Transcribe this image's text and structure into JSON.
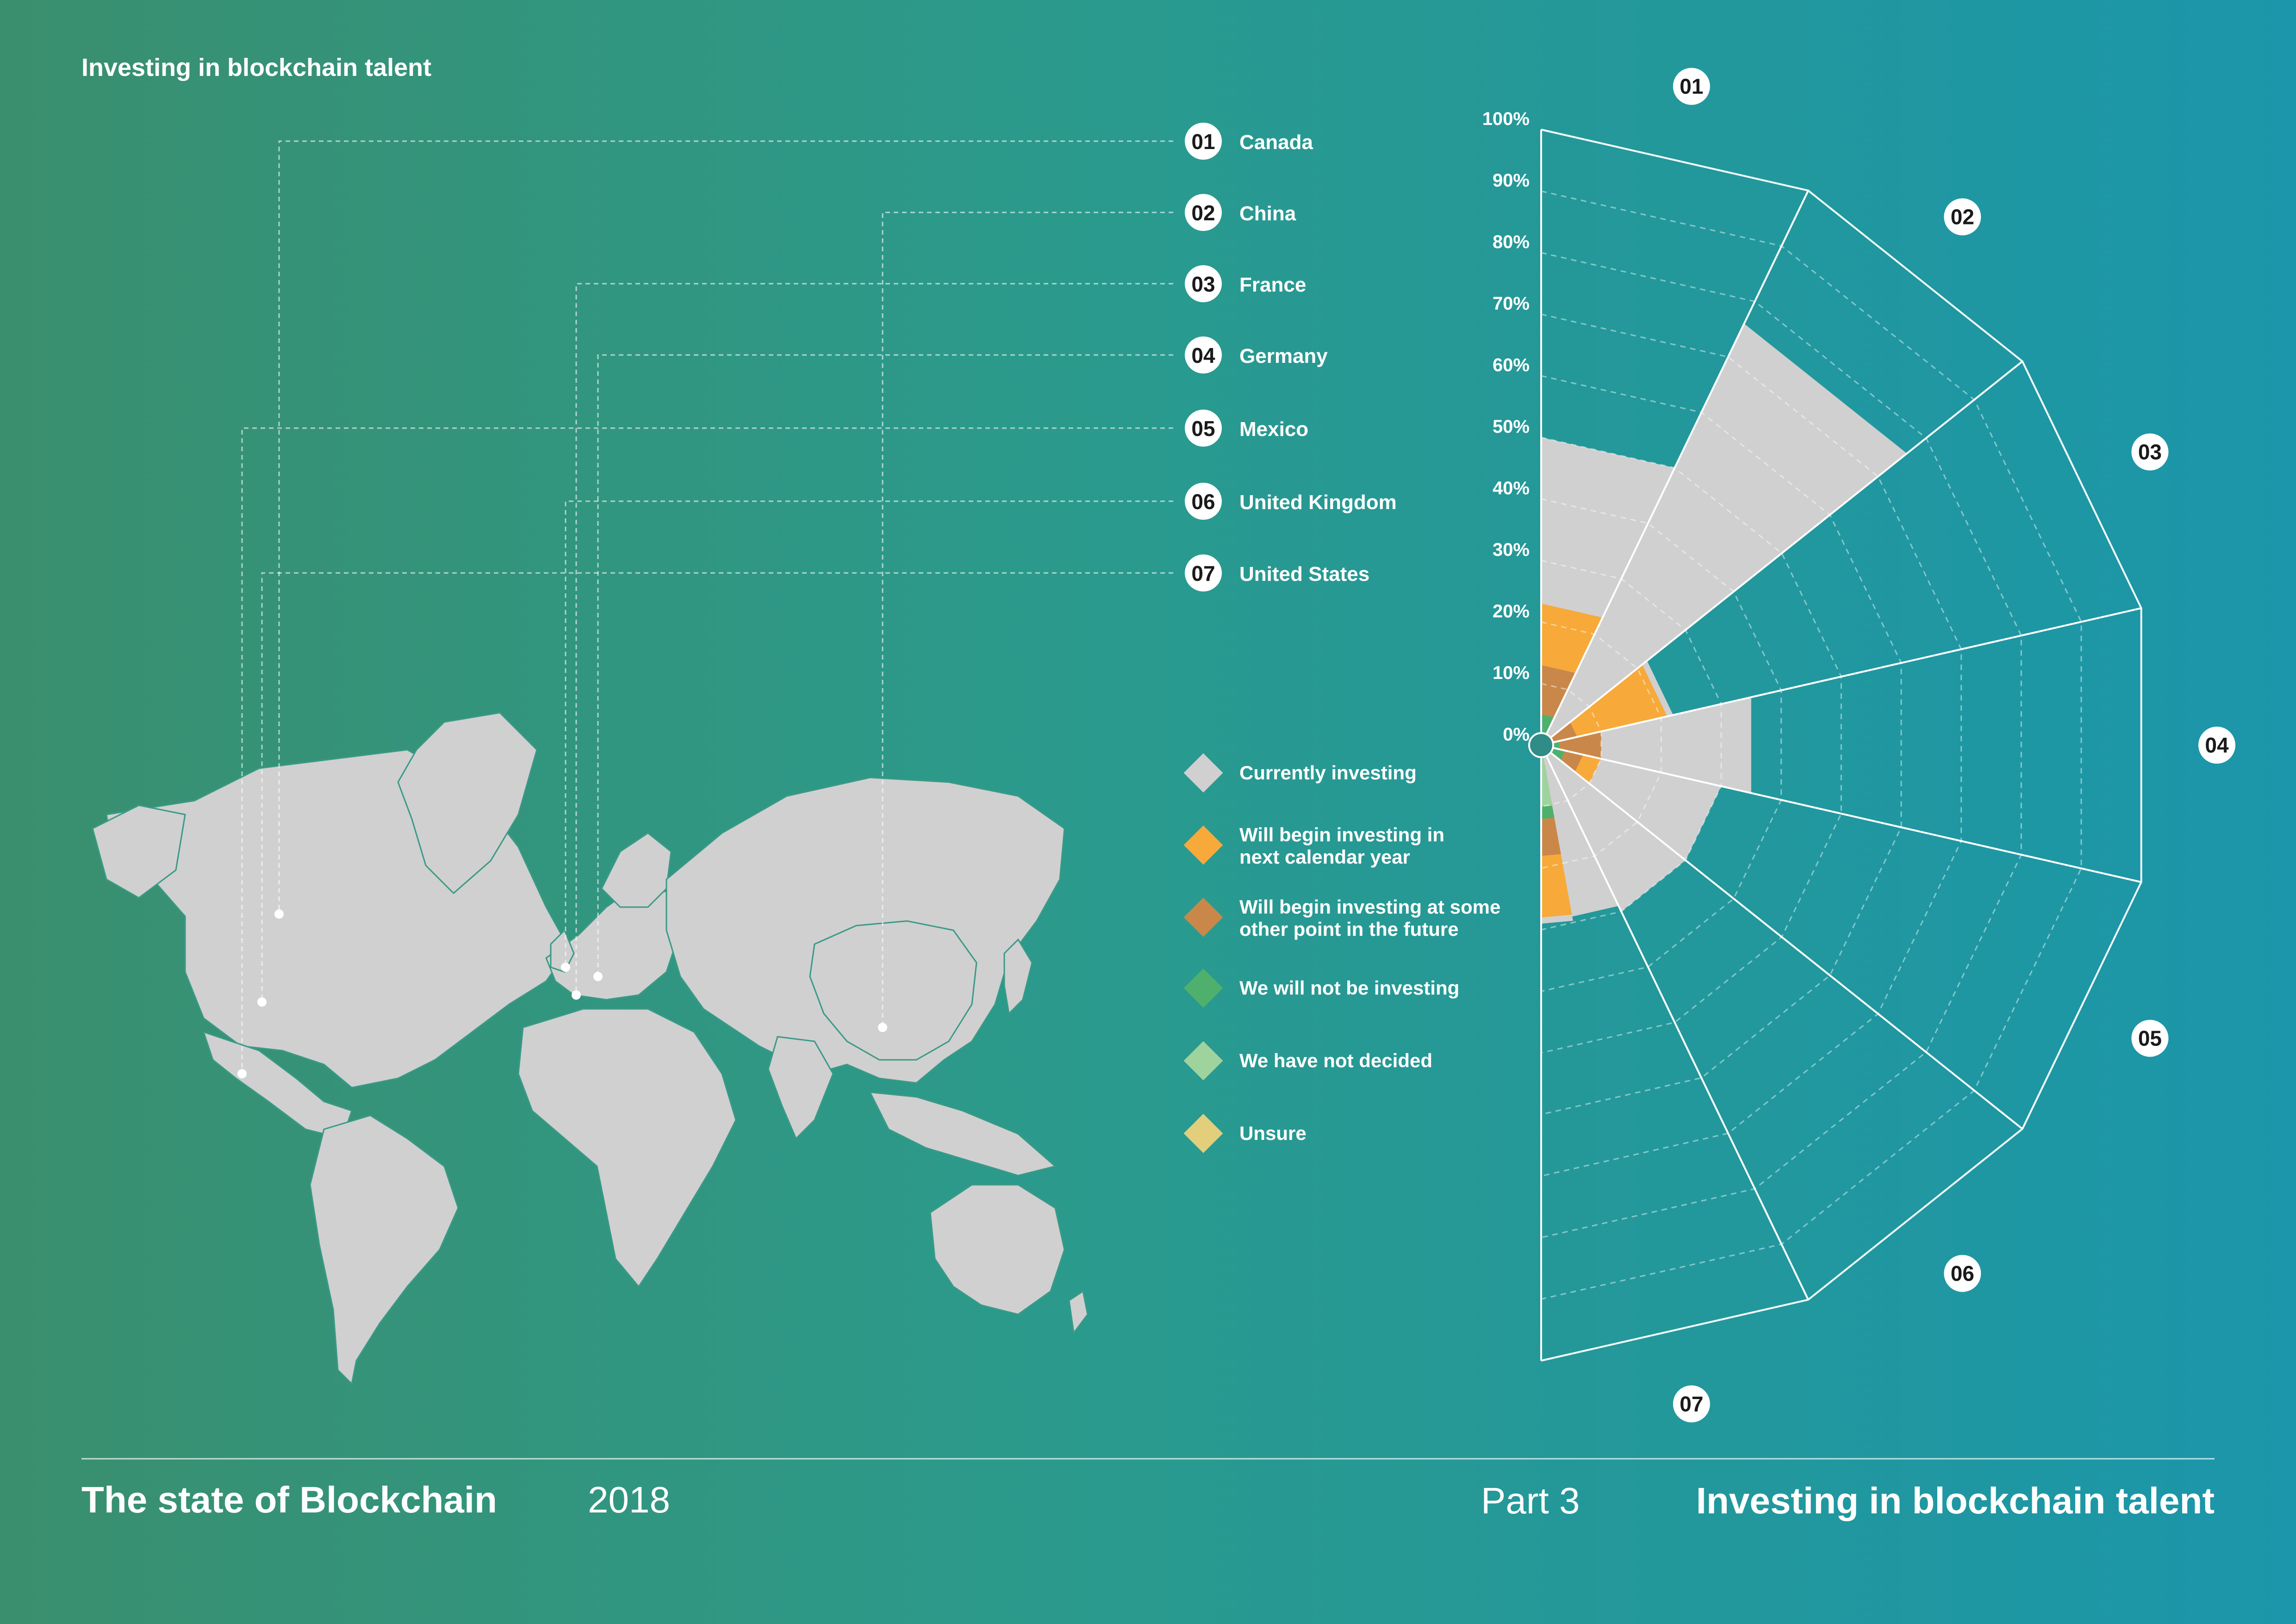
{
  "page": {
    "header_title": "Investing in blockchain talent",
    "footer_left_bold": "The state of Blockchain",
    "footer_left_year": "2018",
    "footer_right_part": "Part 3",
    "footer_right_title": "Investing in blockchain talent"
  },
  "countries": [
    {
      "num": "01",
      "name": "Canada"
    },
    {
      "num": "02",
      "name": "China"
    },
    {
      "num": "03",
      "name": "France"
    },
    {
      "num": "04",
      "name": "Germany"
    },
    {
      "num": "05",
      "name": "Mexico"
    },
    {
      "num": "06",
      "name": "United Kingdom"
    },
    {
      "num": "07",
      "name": "United States"
    }
  ],
  "legend": [
    {
      "label": "Currently investing",
      "color": "#d0d0d0"
    },
    {
      "label": "Will begin investing in next calendar year",
      "color": "#f7a93a"
    },
    {
      "label": "Will begin investing at some other point in the future",
      "color": "#c9884a"
    },
    {
      "label": "We will not be investing",
      "color": "#4fb06e"
    },
    {
      "label": "We have not decided",
      "color": "#9fd39d"
    },
    {
      "label": "Unsure",
      "color": "#e3ce7b"
    }
  ],
  "map": {
    "land_color": "#d0d0d0",
    "marker_color": "#ffffff"
  },
  "chart_data": {
    "type": "polar-area",
    "categories": [
      "01",
      "02",
      "03",
      "04",
      "05",
      "06",
      "07"
    ],
    "radial_axis": {
      "ticks": [
        "0%",
        "10%",
        "20%",
        "30%",
        "40%",
        "50%",
        "60%",
        "70%",
        "80%",
        "90%",
        "100%"
      ],
      "range": [
        0,
        100
      ]
    },
    "series": [
      {
        "name": "Currently investing",
        "values": [
          50,
          76,
          22,
          35,
          30,
          30,
          29
        ]
      },
      {
        "name": "Will begin investing in next calendar year",
        "values": [
          23,
          0,
          21,
          0,
          10,
          0,
          0
        ]
      },
      {
        "name": "Will begin investing at some other point in the future",
        "values": [
          13,
          0,
          6,
          10,
          7,
          0,
          0
        ]
      },
      {
        "name": "We will not be investing",
        "values": [
          5,
          0,
          2,
          3,
          4,
          0,
          0
        ]
      },
      {
        "name": "We have not decided",
        "values": [
          0,
          0,
          0,
          0,
          0,
          0,
          0
        ]
      },
      {
        "name": "Unsure",
        "values": [
          0,
          0,
          0,
          0,
          0,
          0,
          0
        ]
      }
    ],
    "partial_segment": {
      "series": [
        {
          "name": "Currently investing",
          "value": 29
        },
        {
          "name": "Will begin investing in next calendar year",
          "value": 28
        },
        {
          "name": "Will begin investing at some other point in the future",
          "value": 18
        },
        {
          "name": "We will not be investing",
          "value": 12
        },
        {
          "name": "We have not decided",
          "value": 10
        }
      ]
    },
    "grid": true
  }
}
